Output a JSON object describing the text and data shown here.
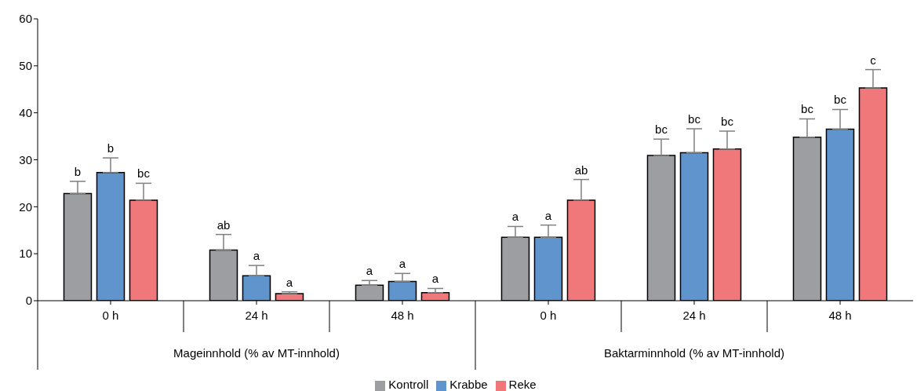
{
  "chart_data": {
    "type": "bar",
    "categories": [
      "0 h",
      "24 h",
      "48 h",
      "0 h",
      "24 h",
      "48 h"
    ],
    "series": [
      {
        "name": "Kontroll",
        "color": "#9d9ea2",
        "values": [
          22.8,
          10.8,
          3.3,
          13.5,
          30.9,
          34.8
        ],
        "errors": [
          [
            22.8,
            25.4
          ],
          [
            10.8,
            14.1
          ],
          [
            3.3,
            4.3
          ],
          [
            13.5,
            15.8
          ],
          [
            30.9,
            34.4
          ],
          [
            34.8,
            38.7
          ]
        ],
        "value_labels": [
          "b",
          "ab",
          "a",
          "a",
          "bc",
          "bc"
        ]
      },
      {
        "name": "Krabbe",
        "color": "#6094cd",
        "values": [
          27.3,
          5.3,
          4.1,
          13.5,
          31.5,
          36.5
        ],
        "errors": [
          [
            27.3,
            30.4
          ],
          [
            5.3,
            7.5
          ],
          [
            4.1,
            5.8
          ],
          [
            13.5,
            16.1
          ],
          [
            31.5,
            36.6
          ],
          [
            36.5,
            40.7
          ]
        ],
        "value_labels": [
          "b",
          "a",
          "a",
          "a",
          "bc",
          "bc"
        ]
      },
      {
        "name": "Reke",
        "color": "#f0787a",
        "values": [
          21.4,
          1.5,
          1.7,
          21.4,
          32.3,
          45.3
        ],
        "errors": [
          [
            21.4,
            25.0
          ],
          [
            1.5,
            1.9
          ],
          [
            1.7,
            2.6
          ],
          [
            21.4,
            25.8
          ],
          [
            32.3,
            36.1
          ],
          [
            45.3,
            49.2
          ]
        ],
        "value_labels": [
          "bc",
          "a",
          "a",
          "ab",
          "bc",
          "c"
        ]
      }
    ],
    "ylim": [
      0,
      60
    ],
    "yticks": [
      0,
      10,
      20,
      30,
      40,
      50,
      60
    ],
    "legend": "bottom",
    "annotations": [
      "Mageinnhold (% av MT-innhold)",
      "Baktarminnhold (% av MT-innhold)"
    ]
  }
}
